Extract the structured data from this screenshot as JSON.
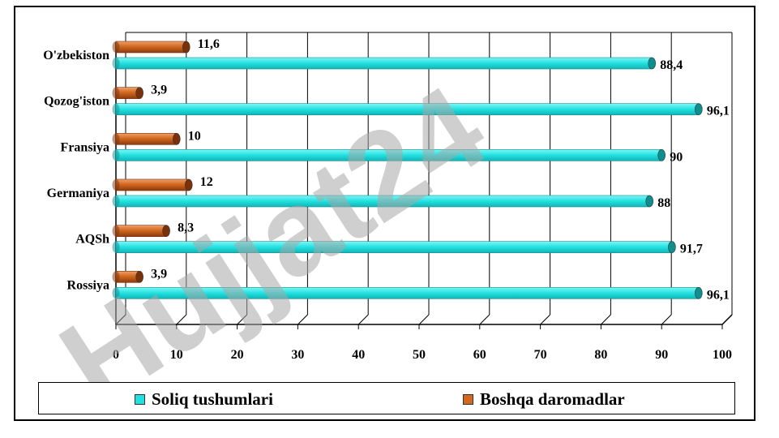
{
  "chart_data": {
    "type": "bar",
    "orientation": "horizontal",
    "categories": [
      "O'zbekiston",
      "Qozog'iston",
      "Fransiya",
      "Germaniya",
      "AQSh",
      "Rossiya"
    ],
    "series": [
      {
        "name": "Soliq tushumlari",
        "values": [
          88.4,
          96.1,
          90,
          88,
          91.7,
          96.1
        ],
        "labels": [
          "88,4",
          "96,1",
          "90",
          "88",
          "91,7",
          "96,1"
        ],
        "color": "#22e0e0"
      },
      {
        "name": "Boshqa daromadlar",
        "values": [
          11.6,
          3.9,
          10,
          12,
          8.3,
          3.9
        ],
        "labels": [
          "11,6",
          "3,9",
          "10",
          "12",
          "8,3",
          "3,9"
        ],
        "color": "#d2691e"
      }
    ],
    "xlim": [
      0,
      100
    ],
    "xticks": [
      "0",
      "10",
      "20",
      "30",
      "40",
      "50",
      "60",
      "70",
      "80",
      "90",
      "100"
    ],
    "grid": true,
    "legend_position": "bottom"
  },
  "watermark": {
    "text": "Hujjat24",
    "color": "#b8b8b8"
  }
}
